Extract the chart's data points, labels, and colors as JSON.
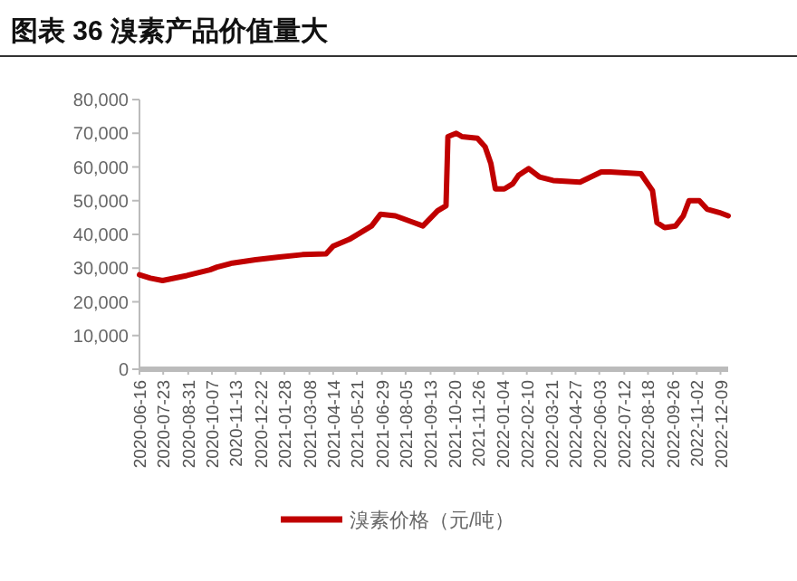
{
  "chart_data": {
    "type": "line",
    "title": "图表 36 溴素产品价值量大",
    "x": [
      "2020-06-16",
      "2020-07-03",
      "2020-07-22",
      "2020-08-29",
      "2020-10-04",
      "2020-10-15",
      "2020-11-08",
      "2020-12-14",
      "2021-01-20",
      "2021-02-25",
      "2021-04-03",
      "2021-04-14",
      "2021-05-09",
      "2021-06-13",
      "2021-06-27",
      "2021-07-20",
      "2021-08-18",
      "2021-09-01",
      "2021-09-24",
      "2021-10-07",
      "2021-10-10",
      "2021-10-23",
      "2021-11-01",
      "2021-11-25",
      "2021-12-07",
      "2021-12-16",
      "2021-12-23",
      "2022-01-06",
      "2022-01-19",
      "2022-01-28",
      "2022-02-13",
      "2022-03-02",
      "2022-03-23",
      "2022-05-04",
      "2022-06-06",
      "2022-06-20",
      "2022-08-07",
      "2022-08-25",
      "2022-09-01",
      "2022-09-13",
      "2022-09-30",
      "2022-10-12",
      "2022-10-21",
      "2022-11-06",
      "2022-11-18",
      "2022-12-07",
      "2022-12-21"
    ],
    "series": [
      {
        "name": "溴素价格（元/吨）",
        "color": "#c00000",
        "values": [
          28000,
          27000,
          26300,
          27800,
          29500,
          30300,
          31500,
          32500,
          33300,
          34000,
          34200,
          36500,
          38500,
          42500,
          46000,
          45500,
          43500,
          42500,
          47000,
          48500,
          69000,
          70000,
          69000,
          68500,
          66000,
          61000,
          53500,
          53500,
          55000,
          57500,
          59500,
          57000,
          56000,
          55500,
          58500,
          58500,
          58000,
          53000,
          43500,
          42000,
          42500,
          45500,
          50000,
          50000,
          47500,
          46500,
          45500
        ]
      }
    ],
    "xlim": [
      "2020-06-16",
      "2022-12-21"
    ],
    "xticks": [
      "2020-06-16",
      "2020-07-23",
      "2020-08-31",
      "2020-10-07",
      "2020-11-13",
      "2020-12-22",
      "2021-01-28",
      "2021-03-08",
      "2021-04-14",
      "2021-05-21",
      "2021-06-29",
      "2021-08-05",
      "2021-09-13",
      "2021-10-20",
      "2021-11-26",
      "2022-01-04",
      "2022-02-10",
      "2022-03-21",
      "2022-04-27",
      "2022-06-03",
      "2022-07-12",
      "2022-08-18",
      "2022-09-26",
      "2022-11-02",
      "2022-12-09"
    ],
    "ylim": [
      0,
      80000
    ],
    "yticks": [
      {
        "value": 0,
        "label": "0"
      },
      {
        "value": 10000,
        "label": "10,000"
      },
      {
        "value": 20000,
        "label": "20,000"
      },
      {
        "value": 30000,
        "label": "30,000"
      },
      {
        "value": 40000,
        "label": "40,000"
      },
      {
        "value": 50000,
        "label": "50,000"
      },
      {
        "value": 60000,
        "label": "60,000"
      },
      {
        "value": 70000,
        "label": "70,000"
      },
      {
        "value": 80000,
        "label": "80,000"
      }
    ],
    "grid": false,
    "legend": "bottom",
    "marker": "none",
    "line_style": "solid"
  }
}
